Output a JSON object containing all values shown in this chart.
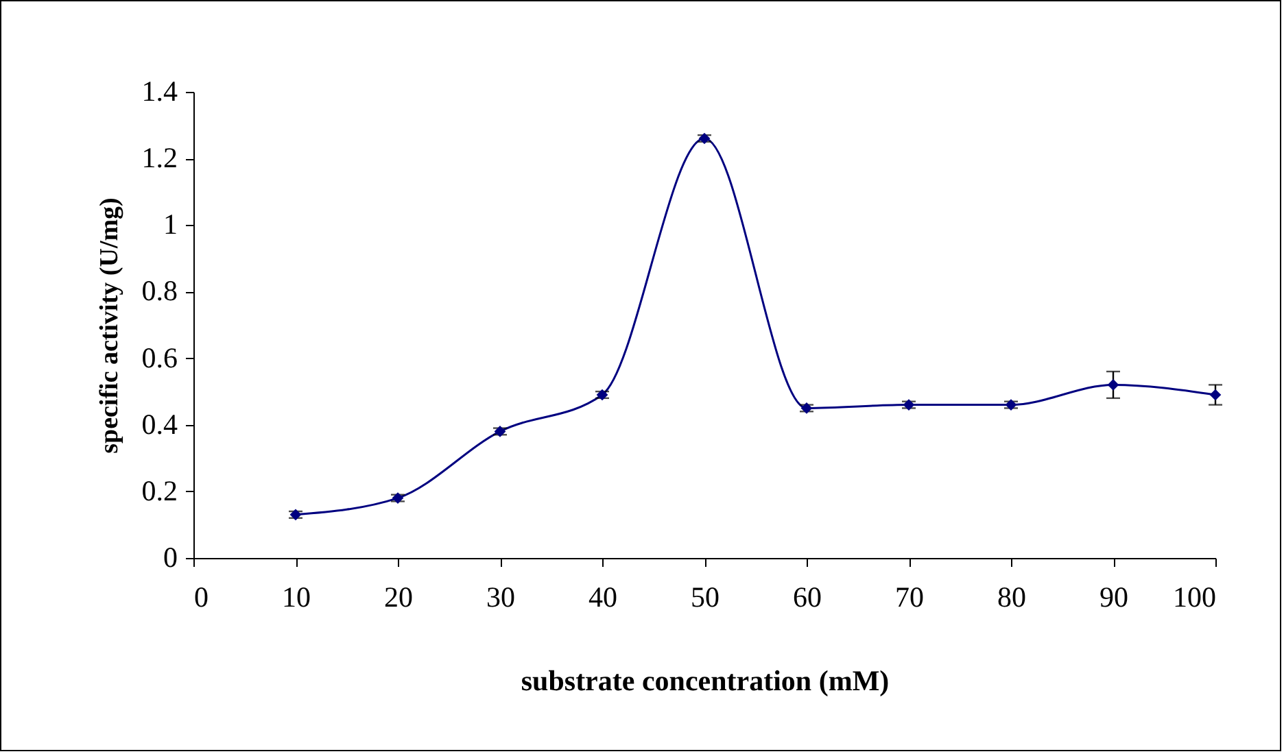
{
  "chart_data": {
    "type": "line",
    "xlabel": "substrate concentration (mM)",
    "ylabel": "specific activity (U/mg)",
    "x": [
      10,
      20,
      30,
      40,
      50,
      60,
      70,
      80,
      90,
      100
    ],
    "series": [
      {
        "color": "#000080",
        "values": [
          0.13,
          0.18,
          0.38,
          0.49,
          1.26,
          0.45,
          0.46,
          0.46,
          0.52,
          0.49
        ],
        "errors": [
          0.01,
          0.01,
          0.01,
          0.01,
          0.01,
          0.01,
          0.01,
          0.01,
          0.04,
          0.03
        ]
      }
    ],
    "xlim": [
      0,
      100
    ],
    "xticks": [
      0,
      10,
      20,
      30,
      40,
      50,
      60,
      70,
      80,
      90,
      100
    ],
    "ylim": [
      0,
      1.4
    ],
    "yticks": [
      0,
      0.2,
      0.4,
      0.6,
      0.8,
      1,
      1.2,
      1.4
    ],
    "grid": false,
    "marker": "diamond",
    "line_style": "solid"
  }
}
